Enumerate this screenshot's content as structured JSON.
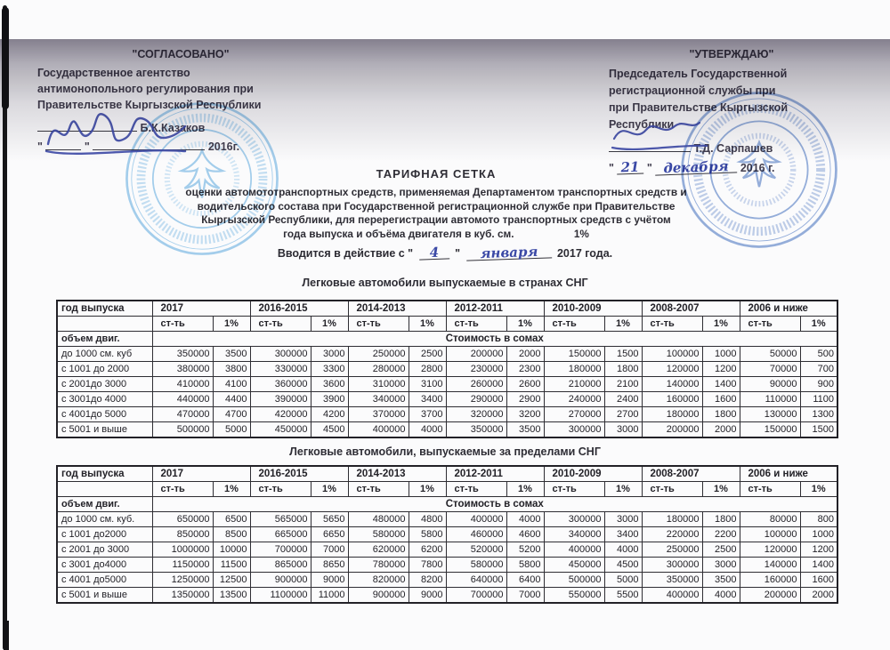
{
  "palette": {
    "stamp_light_blue": "#4da3dd",
    "stamp_blue": "#3f6fc0",
    "ink_blue": "#3b49a6",
    "text_dark": "#2c2b33",
    "shadow_gray": "#696274"
  },
  "left_block": {
    "title": "\"СОГЛАСОВАНО\"",
    "lines": [
      "Государственное агентство",
      "антимонопольного регулирования при",
      "Правительстве Кыргызской Республики"
    ],
    "signer": "Б.К.Казаков",
    "quote": "\"",
    "year": "2016г."
  },
  "right_block": {
    "title": "\"УТВЕРЖДАЮ\"",
    "lines": [
      "Председатель  Государственной",
      "регистрационной   службы   при",
      "при  Правительстве  Кыргызской",
      "Республики"
    ],
    "signer": "Т.Д. Сарпашев",
    "quote": "\"",
    "hand_day": "21",
    "hand_month": "декабря",
    "year": "2016 г."
  },
  "title_block": {
    "heading": "ТАРИФНАЯ  СЕТКА",
    "lines": [
      "оценки автомототранспортных средств, применяемая  Департаментом транспортных средств и",
      "водительского   состава   при   Государственной   регистрационной службе при Правительстве",
      "Кыргызской Республики, для перерегистрации  автомото транспортных средств с учётом",
      "года выпуска и объёма двигателя в куб. см."
    ],
    "note": "1%"
  },
  "effective": {
    "prefix": "Вводится в действие с \"",
    "hand_day": "4",
    "mid": "\"",
    "hand_month": "января",
    "suffix": "2017 года."
  },
  "tables": [
    {
      "subtitle": "Легковые автомобили выпускаемые в странах СНГ",
      "col_header": "год выпуска",
      "year_groups": [
        "2017",
        "2016-2015",
        "2014-2013",
        "2012-2011",
        "2010-2009",
        "2008-2007",
        "2006 и ниже"
      ],
      "sub_headers": [
        "ст-ть",
        "1%"
      ],
      "row_header_label": "объем двиг.",
      "span_label": "Стоимость в сомах",
      "rows": [
        {
          "label": "до 1000 см. куб",
          "values": [
            350000,
            3500,
            300000,
            3000,
            250000,
            2500,
            200000,
            2000,
            150000,
            1500,
            100000,
            1000,
            50000,
            500
          ]
        },
        {
          "label": "с 1001 до 2000",
          "values": [
            380000,
            3800,
            330000,
            3300,
            280000,
            2800,
            230000,
            2300,
            180000,
            1800,
            120000,
            1200,
            70000,
            700
          ]
        },
        {
          "label": "с 2001до 3000",
          "values": [
            410000,
            4100,
            360000,
            3600,
            310000,
            3100,
            260000,
            2600,
            210000,
            2100,
            140000,
            1400,
            90000,
            900
          ]
        },
        {
          "label": "с 3001до 4000",
          "values": [
            440000,
            4400,
            390000,
            3900,
            340000,
            3400,
            290000,
            2900,
            240000,
            2400,
            160000,
            1600,
            110000,
            1100
          ]
        },
        {
          "label": "с 4001до 5000",
          "values": [
            470000,
            4700,
            420000,
            4200,
            370000,
            3700,
            320000,
            3200,
            270000,
            2700,
            180000,
            1800,
            130000,
            1300
          ]
        },
        {
          "label": "с 5001 и выше",
          "values": [
            500000,
            5000,
            450000,
            4500,
            400000,
            4000,
            350000,
            3500,
            300000,
            3000,
            200000,
            2000,
            150000,
            1500
          ]
        }
      ]
    },
    {
      "subtitle": "Легковые автомобили, выпускаемые за пределами СНГ",
      "col_header": "год выпуска",
      "year_groups": [
        "2017",
        "2016-2015",
        "2014-2013",
        "2012-2011",
        "2010-2009",
        "2008-2007",
        "2006 и ниже"
      ],
      "sub_headers": [
        "ст-ть",
        "1%"
      ],
      "row_header_label": "объем двиг.",
      "span_label": "Стоимость в сомах",
      "rows": [
        {
          "label": "до 1000 см. куб.",
          "values": [
            650000,
            6500,
            565000,
            5650,
            480000,
            4800,
            400000,
            4000,
            300000,
            3000,
            180000,
            1800,
            80000,
            800
          ]
        },
        {
          "label": "с 1001 до2000",
          "values": [
            850000,
            8500,
            665000,
            6650,
            580000,
            5800,
            460000,
            4600,
            340000,
            3400,
            220000,
            2200,
            100000,
            1000
          ]
        },
        {
          "label": "с 2001 до 3000",
          "values": [
            1000000,
            10000,
            700000,
            7000,
            620000,
            6200,
            520000,
            5200,
            400000,
            4000,
            250000,
            2500,
            120000,
            1200
          ]
        },
        {
          "label": "с 3001 до4000",
          "values": [
            1150000,
            11500,
            865000,
            8650,
            780000,
            7800,
            580000,
            5800,
            450000,
            4500,
            300000,
            3000,
            140000,
            1400
          ]
        },
        {
          "label": "с 4001 до5000",
          "values": [
            1250000,
            12500,
            900000,
            9000,
            820000,
            8200,
            640000,
            6400,
            500000,
            5000,
            350000,
            3500,
            160000,
            1600
          ]
        },
        {
          "label": "с 5001 и выше",
          "values": [
            1350000,
            13500,
            1100000,
            11000,
            900000,
            9000,
            700000,
            7000,
            550000,
            5500,
            400000,
            4000,
            200000,
            2000
          ]
        }
      ]
    }
  ]
}
